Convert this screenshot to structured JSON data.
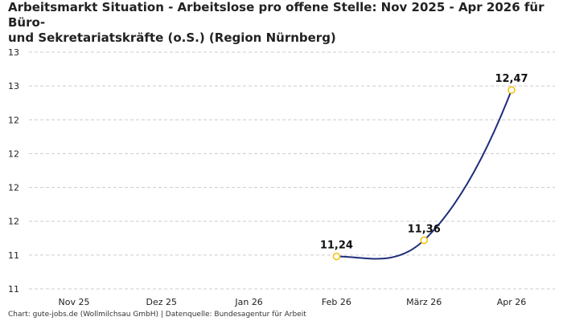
{
  "title_line1": "Arbeitsmarkt Situation - Arbeitslose pro offene Stelle: Nov 2025 - Apr 2026 für Büro-",
  "title_line2": "und Sekretariatskräfte (o.S.) (Region Nürnberg)",
  "footer": "Chart: gute-jobs.de (Wollmilchsau GmbH) | Datenquelle: Bundesagentur für Arbeit",
  "colors": {
    "line": "#1f2d7a",
    "marker_stroke": "#f2c318",
    "marker_fill": "#ffffff",
    "grid": "#cccccc"
  },
  "chart_data": {
    "type": "line",
    "title": "Arbeitsmarkt Situation - Arbeitslose pro offene Stelle: Nov 2025 - Apr 2026 für Büro- und Sekretariatskräfte (o.S.) (Region Nürnberg)",
    "categories": [
      "Nov 25",
      "Dez 25",
      "Jan 26",
      "Feb 26",
      "März 26",
      "Apr 26"
    ],
    "values": [
      null,
      null,
      null,
      11.24,
      11.36,
      12.47
    ],
    "value_labels": [
      "",
      "",
      "",
      "11,24",
      "11,36",
      "12,47"
    ],
    "ytick_values": [
      11.0,
      11.25,
      11.5,
      11.75,
      12.0,
      12.25,
      12.5,
      12.75
    ],
    "ytick_labels": [
      "11",
      "11",
      "12",
      "12",
      "12",
      "12",
      "13",
      "13"
    ],
    "ylim": [
      11.0,
      12.75
    ],
    "grid": true,
    "legend": "none"
  }
}
